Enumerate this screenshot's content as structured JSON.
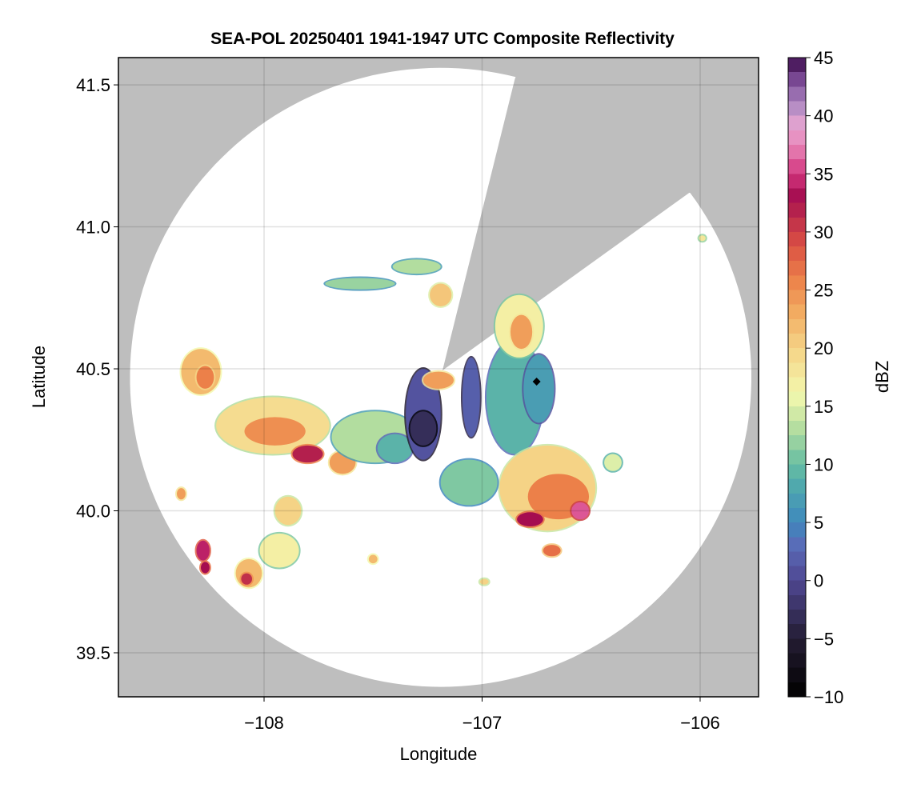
{
  "chart_data": {
    "type": "heatmap",
    "title": "SEA-POL 20250401 1941-1947 UTC Composite Reflectivity",
    "xlabel": "Longitude",
    "ylabel": "Latitude",
    "xlim": [
      -108.668,
      -105.732
    ],
    "ylim": [
      39.345,
      41.596
    ],
    "xticks": [
      -108,
      -107,
      -106
    ],
    "xtick_labels": [
      "−108",
      "−107",
      "−106"
    ],
    "yticks": [
      39.5,
      40.0,
      40.5,
      41.0,
      41.5
    ],
    "ytick_labels": [
      "39.5",
      "40.0",
      "40.5",
      "41.0",
      "41.5"
    ],
    "grid": true,
    "background_color": "#bebebe",
    "coverage": {
      "center": [
        -107.19,
        40.47
      ],
      "radius_lon": 1.425,
      "radius_lat": 1.09,
      "blocked_sector": {
        "from_lon_lat": [
          -106.85,
          41.52
        ],
        "to_lon_lat": [
          -106.05,
          41.12
        ]
      }
    },
    "radar_marker": {
      "lon": -106.75,
      "lat": 40.455
    },
    "colorbar": {
      "label": "dBZ",
      "range": [
        -10,
        45
      ],
      "ticks": [
        -10,
        -5,
        0,
        5,
        10,
        15,
        20,
        25,
        30,
        35,
        40,
        45
      ],
      "tick_labels": [
        "−10",
        "−5",
        "0",
        "5",
        "10",
        "15",
        "20",
        "25",
        "30",
        "35",
        "40",
        "45"
      ],
      "stops": [
        [
          -10,
          "#000000"
        ],
        [
          -5,
          "#241d33"
        ],
        [
          0,
          "#4f4792"
        ],
        [
          3,
          "#5a6bb8"
        ],
        [
          5,
          "#3f88bd"
        ],
        [
          8,
          "#4fa8ae"
        ],
        [
          10,
          "#66bea3"
        ],
        [
          13,
          "#b2dd9f"
        ],
        [
          16,
          "#f3f8ae"
        ],
        [
          20,
          "#f5d386"
        ],
        [
          23,
          "#f2ad62"
        ],
        [
          26,
          "#ec8049"
        ],
        [
          29,
          "#d94e44"
        ],
        [
          31,
          "#c0304a"
        ],
        [
          33,
          "#a50d50"
        ],
        [
          35,
          "#d3357e"
        ],
        [
          37,
          "#e478ae"
        ],
        [
          39,
          "#e9a7d2"
        ],
        [
          41,
          "#ad88c2"
        ],
        [
          43,
          "#7c4b97"
        ],
        [
          45,
          "#3b0a4a"
        ]
      ]
    },
    "echoes": [
      {
        "lon": -108.29,
        "lat": 40.49,
        "rlon": 0.09,
        "rlat": 0.08,
        "dbz": 22
      },
      {
        "lon": -108.27,
        "lat": 40.47,
        "rlon": 0.04,
        "rlat": 0.04,
        "dbz": 26
      },
      {
        "lon": -107.96,
        "lat": 40.3,
        "rlon": 0.26,
        "rlat": 0.1,
        "dbz": 19
      },
      {
        "lon": -107.95,
        "lat": 40.28,
        "rlon": 0.14,
        "rlat": 0.05,
        "dbz": 25
      },
      {
        "lon": -107.8,
        "lat": 40.2,
        "rlon": 0.07,
        "rlat": 0.03,
        "dbz": 32
      },
      {
        "lon": -107.64,
        "lat": 40.17,
        "rlon": 0.06,
        "rlat": 0.04,
        "dbz": 24
      },
      {
        "lon": -107.49,
        "lat": 40.26,
        "rlon": 0.2,
        "rlat": 0.09,
        "dbz": 13
      },
      {
        "lon": -107.4,
        "lat": 40.22,
        "rlon": 0.08,
        "rlat": 0.05,
        "dbz": 9
      },
      {
        "lon": -107.27,
        "lat": 40.34,
        "rlon": 0.08,
        "rlat": 0.16,
        "dbz": 1
      },
      {
        "lon": -107.27,
        "lat": 40.29,
        "rlon": 0.06,
        "rlat": 0.06,
        "dbz": -3
      },
      {
        "lon": -107.05,
        "lat": 40.4,
        "rlon": 0.04,
        "rlat": 0.14,
        "dbz": 2
      },
      {
        "lon": -107.2,
        "lat": 40.46,
        "rlon": 0.07,
        "rlat": 0.03,
        "dbz": 24
      },
      {
        "lon": -106.85,
        "lat": 40.4,
        "rlon": 0.13,
        "rlat": 0.2,
        "dbz": 9
      },
      {
        "lon": -106.74,
        "lat": 40.43,
        "rlon": 0.07,
        "rlat": 0.12,
        "dbz": 7
      },
      {
        "lon": -106.83,
        "lat": 40.65,
        "rlon": 0.11,
        "rlat": 0.11,
        "dbz": 17
      },
      {
        "lon": -106.82,
        "lat": 40.63,
        "rlon": 0.05,
        "rlat": 0.06,
        "dbz": 24
      },
      {
        "lon": -106.7,
        "lat": 40.08,
        "rlon": 0.22,
        "rlat": 0.15,
        "dbz": 20
      },
      {
        "lon": -106.65,
        "lat": 40.05,
        "rlon": 0.14,
        "rlat": 0.08,
        "dbz": 26
      },
      {
        "lon": -106.78,
        "lat": 39.97,
        "rlon": 0.06,
        "rlat": 0.025,
        "dbz": 33
      },
      {
        "lon": -106.55,
        "lat": 40.0,
        "rlon": 0.04,
        "rlat": 0.03,
        "dbz": 36
      },
      {
        "lon": -106.68,
        "lat": 39.86,
        "rlon": 0.04,
        "rlat": 0.02,
        "dbz": 27
      },
      {
        "lon": -106.4,
        "lat": 40.17,
        "rlon": 0.04,
        "rlat": 0.03,
        "dbz": 15
      },
      {
        "lon": -107.06,
        "lat": 40.1,
        "rlon": 0.13,
        "rlat": 0.08,
        "dbz": 11
      },
      {
        "lon": -107.89,
        "lat": 40.0,
        "rlon": 0.06,
        "rlat": 0.05,
        "dbz": 20
      },
      {
        "lon": -107.93,
        "lat": 39.86,
        "rlon": 0.09,
        "rlat": 0.06,
        "dbz": 17
      },
      {
        "lon": -108.07,
        "lat": 39.78,
        "rlon": 0.06,
        "rlat": 0.05,
        "dbz": 22
      },
      {
        "lon": -108.08,
        "lat": 39.76,
        "rlon": 0.025,
        "rlat": 0.02,
        "dbz": 31
      },
      {
        "lon": -108.28,
        "lat": 39.86,
        "rlon": 0.03,
        "rlat": 0.035,
        "dbz": 34
      },
      {
        "lon": -108.27,
        "lat": 39.8,
        "rlon": 0.02,
        "rlat": 0.02,
        "dbz": 33
      },
      {
        "lon": -108.38,
        "lat": 40.06,
        "rlon": 0.02,
        "rlat": 0.02,
        "dbz": 24
      },
      {
        "lon": -107.56,
        "lat": 40.8,
        "rlon": 0.16,
        "rlat": 0.02,
        "dbz": 12
      },
      {
        "lon": -107.3,
        "lat": 40.86,
        "rlon": 0.11,
        "rlat": 0.025,
        "dbz": 13
      },
      {
        "lon": -107.19,
        "lat": 40.76,
        "rlon": 0.05,
        "rlat": 0.04,
        "dbz": 21
      },
      {
        "lon": -107.5,
        "lat": 39.83,
        "rlon": 0.02,
        "rlat": 0.015,
        "dbz": 22
      },
      {
        "lon": -106.99,
        "lat": 39.75,
        "rlon": 0.02,
        "rlat": 0.01,
        "dbz": 20
      },
      {
        "lon": -105.99,
        "lat": 40.96,
        "rlon": 0.015,
        "rlat": 0.01,
        "dbz": 18
      }
    ]
  }
}
